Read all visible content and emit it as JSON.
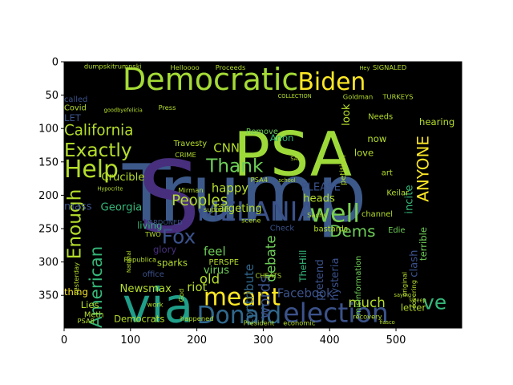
{
  "chart_data": {
    "type": "wordcloud",
    "xlim": [
      0,
      599
    ],
    "ylim": [
      399,
      0
    ],
    "x_ticks": [
      0,
      100,
      200,
      300,
      400,
      500
    ],
    "y_ticks": [
      0,
      50,
      100,
      150,
      200,
      250,
      300,
      350
    ],
    "background": "#000000",
    "words": [
      {
        "text": "Trump",
        "x": 88,
        "y": 238,
        "size": 118,
        "rotate": 0,
        "color": "#3c598a"
      },
      {
        "text": "PSA",
        "x": 255,
        "y": 170,
        "size": 92,
        "rotate": 0,
        "color": "#9ed93a"
      },
      {
        "text": "S",
        "x": 110,
        "y": 255,
        "size": 150,
        "rotate": 0,
        "color": "#472f7d"
      },
      {
        "text": "via",
        "x": 88,
        "y": 390,
        "size": 72,
        "rotate": 0,
        "color": "#1f9e89"
      },
      {
        "text": "Democratic",
        "x": 88,
        "y": 42,
        "size": 46,
        "rotate": 0,
        "color": "#a5db36"
      },
      {
        "text": "election",
        "x": 330,
        "y": 390,
        "size": 40,
        "rotate": 0,
        "color": "#3b528b"
      },
      {
        "text": "Donald",
        "x": 200,
        "y": 392,
        "size": 36,
        "rotate": 0,
        "color": "#31688e"
      },
      {
        "text": "MELANIA",
        "x": 200,
        "y": 238,
        "size": 40,
        "rotate": 0,
        "color": "#3b528b"
      },
      {
        "text": "well",
        "x": 370,
        "y": 240,
        "size": 38,
        "rotate": 0,
        "color": "#7ad151"
      },
      {
        "text": "Biden",
        "x": 352,
        "y": 42,
        "size": 36,
        "rotate": 0,
        "color": "#fde725"
      },
      {
        "text": "meant",
        "x": 210,
        "y": 365,
        "size": 36,
        "rotate": 0,
        "color": "#fde725"
      },
      {
        "text": "Fox",
        "x": 147,
        "y": 272,
        "size": 30,
        "rotate": 0,
        "color": "#3b528b"
      },
      {
        "text": "Help",
        "x": 0,
        "y": 173,
        "size": 36,
        "rotate": 0,
        "color": "#b5de2b"
      },
      {
        "text": "Exactly",
        "x": 0,
        "y": 142,
        "size": 28,
        "rotate": 0,
        "color": "#b5de2b"
      },
      {
        "text": "California",
        "x": 0,
        "y": 110,
        "size": 22,
        "rotate": 0,
        "color": "#b5de2b"
      },
      {
        "text": "Thank",
        "x": 214,
        "y": 165,
        "size": 28,
        "rotate": 0,
        "color": "#6ece58"
      },
      {
        "text": "Enough",
        "x": 25,
        "y": 296,
        "size": 28,
        "rotate": -90,
        "color": "#b5de2b"
      },
      {
        "text": "American",
        "x": 57,
        "y": 399,
        "size": 26,
        "rotate": -90,
        "color": "#35b779"
      },
      {
        "text": "ANYONE",
        "x": 549,
        "y": 210,
        "size": 24,
        "rotate": -90,
        "color": "#fde725"
      },
      {
        "text": "Dems",
        "x": 400,
        "y": 262,
        "size": 24,
        "rotate": 0,
        "color": "#6ece58"
      },
      {
        "text": "ve",
        "x": 540,
        "y": 371,
        "size": 30,
        "rotate": 0,
        "color": "#35b779"
      },
      {
        "text": "Peoples",
        "x": 162,
        "y": 215,
        "size": 22,
        "rotate": 0,
        "color": "#b5de2b"
      },
      {
        "text": "words",
        "x": 310,
        "y": 385,
        "size": 22,
        "rotate": -90,
        "color": "#3b528b"
      },
      {
        "text": "debate",
        "x": 318,
        "y": 330,
        "size": 20,
        "rotate": -90,
        "color": "#6ece58"
      },
      {
        "text": "contribute",
        "x": 285,
        "y": 395,
        "size": 18,
        "rotate": -90,
        "color": "#31688e"
      },
      {
        "text": "Facebook",
        "x": 321,
        "y": 353,
        "size": 18,
        "rotate": 0,
        "color": "#3b528b"
      },
      {
        "text": "much",
        "x": 428,
        "y": 368,
        "size": 20,
        "rotate": 0,
        "color": "#b5de2b"
      },
      {
        "text": "CNN",
        "x": 225,
        "y": 135,
        "size": 18,
        "rotate": 0,
        "color": "#b5de2b"
      },
      {
        "text": "happy",
        "x": 222,
        "y": 195,
        "size": 18,
        "rotate": 0,
        "color": "#b5de2b"
      },
      {
        "text": "targeting",
        "x": 225,
        "y": 225,
        "size": 16,
        "rotate": 0,
        "color": "#b5de2b"
      },
      {
        "text": "incite",
        "x": 525,
        "y": 228,
        "size": 16,
        "rotate": -90,
        "color": "#35b779"
      },
      {
        "text": "Crucible",
        "x": 56,
        "y": 178,
        "size": 16,
        "rotate": 0,
        "color": "#b5de2b"
      },
      {
        "text": "Georgia",
        "x": 55,
        "y": 223,
        "size": 16,
        "rotate": 0,
        "color": "#35b779"
      },
      {
        "text": "mass",
        "x": 0,
        "y": 222,
        "size": 16,
        "rotate": 0,
        "color": "#3b528b"
      },
      {
        "text": "old",
        "x": 204,
        "y": 332,
        "size": 20,
        "rotate": 0,
        "color": "#b5de2b"
      },
      {
        "text": "feel",
        "x": 210,
        "y": 290,
        "size": 18,
        "rotate": 0,
        "color": "#6ece58"
      },
      {
        "text": "virus",
        "x": 210,
        "y": 317,
        "size": 16,
        "rotate": 0,
        "color": "#6ece58"
      },
      {
        "text": "riot",
        "x": 185,
        "y": 344,
        "size": 18,
        "rotate": 0,
        "color": "#b5de2b"
      },
      {
        "text": "Newsmax",
        "x": 84,
        "y": 345,
        "size": 16,
        "rotate": 0,
        "color": "#b5de2b"
      },
      {
        "text": "pretend",
        "x": 390,
        "y": 358,
        "size": 16,
        "rotate": -90,
        "color": "#3b528b"
      },
      {
        "text": "hysteria",
        "x": 413,
        "y": 358,
        "size": 16,
        "rotate": -90,
        "color": "#3b528b"
      },
      {
        "text": "clash",
        "x": 532,
        "y": 323,
        "size": 16,
        "rotate": -90,
        "color": "#3b528b"
      },
      {
        "text": "Democrats",
        "x": 75,
        "y": 390,
        "size": 14,
        "rotate": 0,
        "color": "#b5de2b"
      },
      {
        "text": "letter",
        "x": 507,
        "y": 373,
        "size": 14,
        "rotate": 0,
        "color": "#b5de2b"
      },
      {
        "text": "Lies",
        "x": 25,
        "y": 369,
        "size": 14,
        "rotate": 0,
        "color": "#b5de2b"
      },
      {
        "text": "thing",
        "x": 0,
        "y": 350,
        "size": 14,
        "rotate": 0,
        "color": "#fde725"
      },
      {
        "text": "Meth",
        "x": 30,
        "y": 383,
        "size": 12,
        "rotate": 0,
        "color": "#b5de2b"
      },
      {
        "text": "PERSPE",
        "x": 218,
        "y": 304,
        "size": 12,
        "rotate": 0,
        "color": "#b5de2b"
      },
      {
        "text": "sparks",
        "x": 140,
        "y": 306,
        "size": 14,
        "rotate": 0,
        "color": "#b5de2b"
      },
      {
        "text": "glory",
        "x": 134,
        "y": 286,
        "size": 14,
        "rotate": 0,
        "color": "#472f7d"
      },
      {
        "text": "living",
        "x": 110,
        "y": 250,
        "size": 14,
        "rotate": 0,
        "color": "#35b779"
      },
      {
        "text": "office",
        "x": 118,
        "y": 322,
        "size": 12,
        "rotate": 0,
        "color": "#3b528b"
      },
      {
        "text": "PLEASE",
        "x": 357,
        "y": 193,
        "size": 16,
        "rotate": 0,
        "color": "#3b528b"
      },
      {
        "text": "heads",
        "x": 360,
        "y": 210,
        "size": 16,
        "rotate": 0,
        "color": "#b5de2b"
      },
      {
        "text": "hearing",
        "x": 535,
        "y": 95,
        "size": 14,
        "rotate": 0,
        "color": "#b5de2b"
      },
      {
        "text": "look",
        "x": 430,
        "y": 96,
        "size": 16,
        "rotate": -90,
        "color": "#b5de2b"
      },
      {
        "text": "now",
        "x": 457,
        "y": 120,
        "size": 14,
        "rotate": 0,
        "color": "#b5de2b"
      },
      {
        "text": "love",
        "x": 437,
        "y": 141,
        "size": 14,
        "rotate": 0,
        "color": "#b5de2b"
      },
      {
        "text": "art",
        "x": 478,
        "y": 170,
        "size": 12,
        "rotate": 0,
        "color": "#b5de2b"
      },
      {
        "text": "TheHill",
        "x": 365,
        "y": 330,
        "size": 14,
        "rotate": -90,
        "color": "#35b779"
      },
      {
        "text": "Edie",
        "x": 488,
        "y": 256,
        "size": 12,
        "rotate": 0,
        "color": "#6ece58"
      },
      {
        "text": "terrible",
        "x": 546,
        "y": 298,
        "size": 14,
        "rotate": -90,
        "color": "#6ece58"
      },
      {
        "text": "channel",
        "x": 448,
        "y": 232,
        "size": 12,
        "rotate": 0,
        "color": "#b5de2b"
      },
      {
        "text": "Check",
        "x": 310,
        "y": 253,
        "size": 12,
        "rotate": 0,
        "color": "#3b528b"
      },
      {
        "text": "bastards",
        "x": 376,
        "y": 254,
        "size": 12,
        "rotate": 0,
        "color": "#b5de2b"
      },
      {
        "text": "Anon",
        "x": 310,
        "y": 119,
        "size": 14,
        "rotate": 0,
        "color": "#35b779"
      },
      {
        "text": "Remove",
        "x": 274,
        "y": 108,
        "size": 12,
        "rotate": 0,
        "color": "#6ece58"
      },
      {
        "text": "Travesty",
        "x": 165,
        "y": 126,
        "size": 12,
        "rotate": 0,
        "color": "#b5de2b"
      },
      {
        "text": "Mirman",
        "x": 172,
        "y": 196,
        "size": 10,
        "rotate": 0,
        "color": "#b5de2b"
      },
      {
        "text": "CRIME",
        "x": 167,
        "y": 143,
        "size": 10,
        "rotate": 0,
        "color": "#b5de2b"
      },
      {
        "text": "PARDONED",
        "x": 122,
        "y": 244,
        "size": 10,
        "rotate": 0,
        "color": "#3b528b"
      },
      {
        "text": "TWO",
        "x": 122,
        "y": 262,
        "size": 10,
        "rotate": 0,
        "color": "#b5de2b"
      },
      {
        "text": "LET",
        "x": 0,
        "y": 89,
        "size": 14,
        "rotate": 0,
        "color": "#3b528b"
      },
      {
        "text": "Covid",
        "x": 0,
        "y": 73,
        "size": 12,
        "rotate": 0,
        "color": "#b5de2b"
      },
      {
        "text": "called",
        "x": 0,
        "y": 60,
        "size": 12,
        "rotate": 0,
        "color": "#3b528b"
      },
      {
        "text": "dumpskitrumpski",
        "x": 30,
        "y": 10,
        "size": 10,
        "rotate": 0,
        "color": "#b5de2b"
      },
      {
        "text": "Helloooo",
        "x": 160,
        "y": 12,
        "size": 10,
        "rotate": 0,
        "color": "#b5de2b"
      },
      {
        "text": "Proceeds",
        "x": 228,
        "y": 12,
        "size": 10,
        "rotate": 0,
        "color": "#b5de2b"
      },
      {
        "text": "Needs",
        "x": 458,
        "y": 86,
        "size": 12,
        "rotate": 0,
        "color": "#b5de2b"
      },
      {
        "text": "SIGNALED",
        "x": 465,
        "y": 12,
        "size": 10,
        "rotate": 0,
        "color": "#b5de2b"
      },
      {
        "text": "TURKEYS",
        "x": 480,
        "y": 56,
        "size": 10,
        "rotate": 0,
        "color": "#b5de2b"
      },
      {
        "text": "Goldman",
        "x": 420,
        "y": 56,
        "size": 10,
        "rotate": 0,
        "color": "#b5de2b"
      },
      {
        "text": "Keilar",
        "x": 486,
        "y": 200,
        "size": 12,
        "rotate": 0,
        "color": "#b5de2b"
      },
      {
        "text": "Republica",
        "x": 90,
        "y": 300,
        "size": 10,
        "rotate": 0,
        "color": "#b5de2b"
      },
      {
        "text": "yesterday",
        "x": 22,
        "y": 350,
        "size": 10,
        "rotate": -90,
        "color": "#b5de2b"
      },
      {
        "text": "PSA4",
        "x": 281,
        "y": 180,
        "size": 10,
        "rotate": 0,
        "color": "#b5de2b"
      },
      {
        "text": "PSA8",
        "x": 20,
        "y": 392,
        "size": 10,
        "rotate": 0,
        "color": "#b5de2b"
      },
      {
        "text": "covering",
        "x": 530,
        "y": 370,
        "size": 10,
        "rotate": -90,
        "color": "#b5de2b"
      },
      {
        "text": "misinformation",
        "x": 447,
        "y": 380,
        "size": 12,
        "rotate": -90,
        "color": "#6ece58"
      },
      {
        "text": "recovery",
        "x": 435,
        "y": 385,
        "size": 10,
        "rotate": 0,
        "color": "#b5de2b"
      },
      {
        "text": "President",
        "x": 270,
        "y": 395,
        "size": 10,
        "rotate": 0,
        "color": "#b5de2b"
      },
      {
        "text": "economic",
        "x": 330,
        "y": 395,
        "size": 10,
        "rotate": 0,
        "color": "#b5de2b"
      },
      {
        "text": "happened",
        "x": 175,
        "y": 388,
        "size": 10,
        "rotate": 0,
        "color": "#b5de2b"
      },
      {
        "text": "work",
        "x": 125,
        "y": 367,
        "size": 10,
        "rotate": 0,
        "color": "#b5de2b"
      },
      {
        "text": "scene",
        "x": 267,
        "y": 241,
        "size": 10,
        "rotate": 0,
        "color": "#b5de2b"
      },
      {
        "text": "support",
        "x": 210,
        "y": 225,
        "size": 10,
        "rotate": 0,
        "color": "#b5de2b"
      },
      {
        "text": "original",
        "x": 516,
        "y": 352,
        "size": 10,
        "rotate": -90,
        "color": "#b5de2b"
      },
      {
        "text": "CHEATS",
        "x": 288,
        "y": 324,
        "size": 10,
        "rotate": 0,
        "color": "#b5de2b"
      },
      {
        "text": "Sachs",
        "x": 366,
        "y": 233,
        "size": 10,
        "rotate": 0,
        "color": "#b5de2b"
      },
      {
        "text": "COLLECTION",
        "x": 322,
        "y": 54,
        "size": 8,
        "rotate": 0,
        "color": "#b5de2b"
      },
      {
        "text": "Press",
        "x": 142,
        "y": 72,
        "size": 10,
        "rotate": 0,
        "color": "#b5de2b"
      },
      {
        "text": "school",
        "x": 323,
        "y": 180,
        "size": 8,
        "rotate": 0,
        "color": "#b5de2b"
      },
      {
        "text": "SALE",
        "x": 341,
        "y": 148,
        "size": 8,
        "rotate": 0,
        "color": "#b5de2b"
      },
      {
        "text": "petition",
        "x": 424,
        "y": 185,
        "size": 12,
        "rotate": -90,
        "color": "#b5de2b"
      },
      {
        "text": "Hey",
        "x": 445,
        "y": 12,
        "size": 8,
        "rotate": 0,
        "color": "#b5de2b"
      },
      {
        "text": "saying",
        "x": 497,
        "y": 352,
        "size": 8,
        "rotate": 0,
        "color": "#b5de2b"
      },
      {
        "text": "sweep",
        "x": 520,
        "y": 360,
        "size": 8,
        "rotate": 0,
        "color": "#b5de2b"
      },
      {
        "text": "National",
        "x": 100,
        "y": 316,
        "size": 8,
        "rotate": -90,
        "color": "#b5de2b"
      },
      {
        "text": "God",
        "x": 180,
        "y": 360,
        "size": 10,
        "rotate": -90,
        "color": "#b5de2b"
      },
      {
        "text": "fiasco",
        "x": 475,
        "y": 393,
        "size": 8,
        "rotate": 0,
        "color": "#b5de2b"
      },
      {
        "text": "Hypocrite",
        "x": 50,
        "y": 193,
        "size": 8,
        "rotate": 0,
        "color": "#b5de2b"
      },
      {
        "text": "goodbyefelicia",
        "x": 60,
        "y": 75,
        "size": 8,
        "rotate": 0,
        "color": "#b5de2b"
      }
    ]
  }
}
